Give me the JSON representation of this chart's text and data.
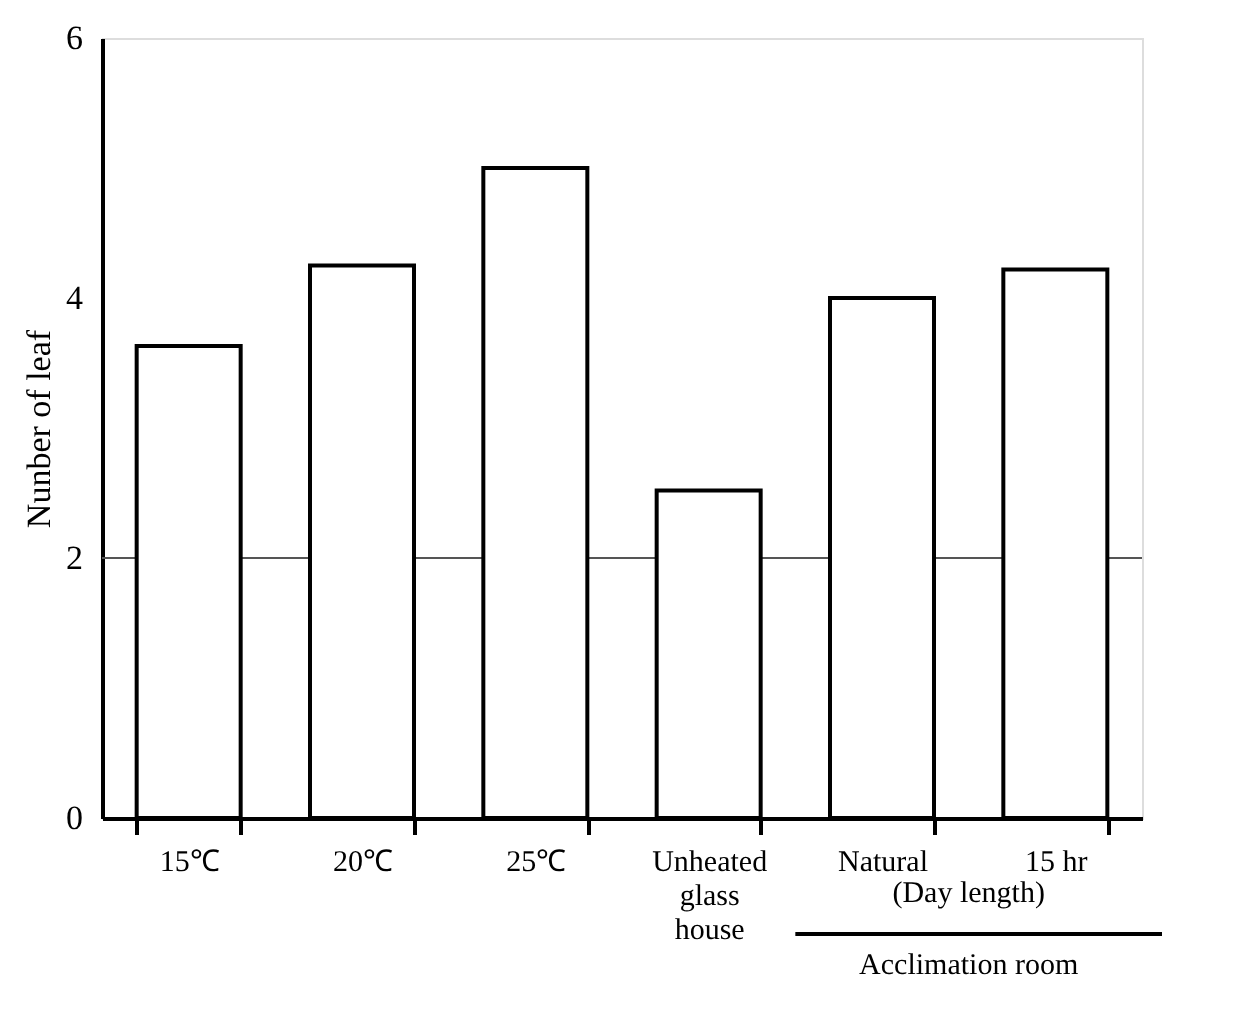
{
  "chart_data": {
    "type": "bar",
    "ylabel": "Nunber of leaf",
    "categories": [
      "15℃",
      "20℃",
      "25℃",
      "Unheated\nglass\nhouse",
      "Natural",
      "15 hr"
    ],
    "values": [
      3.63,
      4.25,
      5.0,
      2.52,
      4.0,
      4.22
    ],
    "color": "#ffffff",
    "ylim": [
      0,
      6
    ],
    "yticks": [
      0,
      2,
      4,
      6
    ],
    "grid": false,
    "ref_lines": [
      {
        "axis": "y",
        "value": 2,
        "color": "#555555"
      }
    ],
    "annotations": [
      "(Day length)",
      "Acclimation room"
    ]
  }
}
